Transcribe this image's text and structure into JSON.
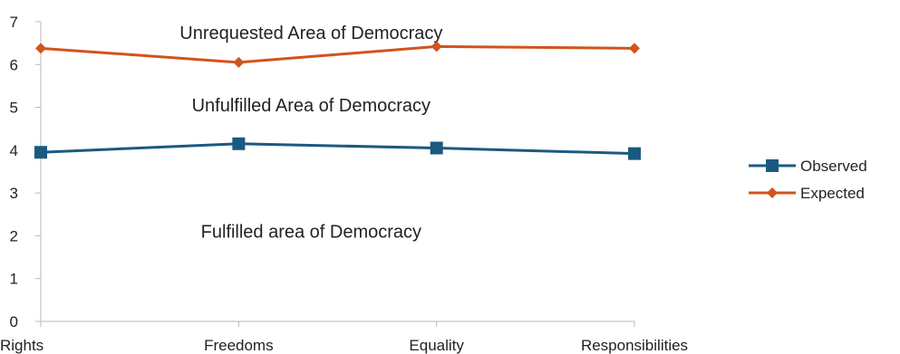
{
  "chart_data": {
    "type": "line",
    "categories": [
      "Rights",
      "Freedoms",
      "Equality",
      "Responsibilities"
    ],
    "series": [
      {
        "name": "Observed",
        "values": [
          3.95,
          4.15,
          4.05,
          3.92
        ],
        "color": "#1a5a80",
        "marker": "square"
      },
      {
        "name": "Expected",
        "values": [
          6.38,
          6.05,
          6.42,
          6.38
        ],
        "color": "#d2531c",
        "marker": "diamond"
      }
    ],
    "ylim": [
      0,
      7
    ],
    "yticks": [
      0,
      1,
      2,
      3,
      4,
      5,
      6,
      7
    ],
    "grid": false,
    "legend_position": "right",
    "annotations": [
      {
        "text": "Unrequested Area of Democracy",
        "x": "Freedoms",
        "y": 6.75
      },
      {
        "text": "Unfulfilled Area of Democracy",
        "x": "Freedoms",
        "y": 5.05
      },
      {
        "text": "Fulfilled area of Democracy",
        "x": "Freedoms",
        "y": 2.1
      }
    ],
    "title": "",
    "xlabel": "",
    "ylabel": ""
  }
}
